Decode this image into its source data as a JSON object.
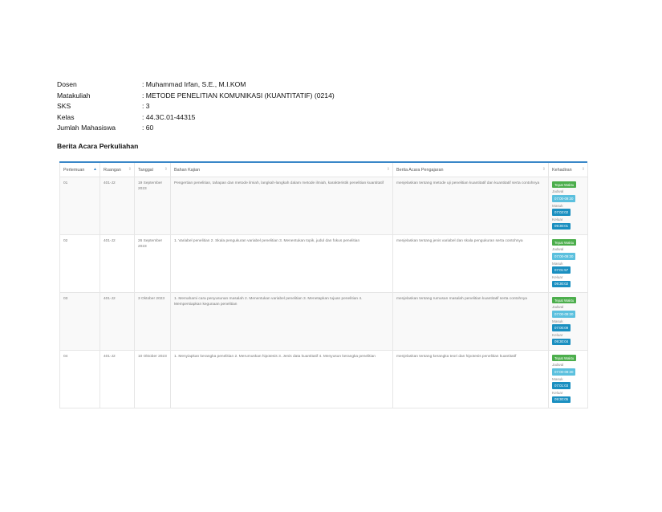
{
  "info": {
    "rows": [
      {
        "label": "Dosen",
        "value": ": Muhammad Irfan, S.E., M.I.KOM"
      },
      {
        "label": "Matakuliah",
        "value": ": METODE PENELITIAN KOMUNIKASI (KUANTITATIF) (0214)"
      },
      {
        "label": "SKS",
        "value": ": 3"
      },
      {
        "label": "Kelas",
        "value": ": 44.3C.01-44315"
      },
      {
        "label": "Jumlah Mahasiswa",
        "value": ": 60"
      }
    ]
  },
  "section_title": "Berita Acara Perkuliahan",
  "table": {
    "headers": {
      "pertemuan": "Pertemuan",
      "ruangan": "Ruangan",
      "tanggal": "Tanggal",
      "bahan": "Bahan Kajian",
      "berita": "Berita Acara Pengajaran",
      "kehadiran": "Kehadiran"
    },
    "rows": [
      {
        "pertemuan": "01",
        "ruangan": "401-J2",
        "tanggal": "19 September 2023",
        "bahan": "Pengertian penelitian, tahapan dan metode ilmiah, langkah-langkah dalam metode ilmiah, karakteristik penelitian kuantitatif",
        "berita": "menjelaskan tentang metode uji penelitian kuantitatif dan kuantitatif serta contohnya",
        "status": "Tepat Waktu",
        "jadwal_label": "Jadwal",
        "jadwal": "07:00-09:30",
        "masuk_label": "Masuk",
        "masuk": "07:02:02",
        "keluar_label": "Keluar",
        "keluar": "09:30:01"
      },
      {
        "pertemuan": "02",
        "ruangan": "401-J2",
        "tanggal": "26 September 2023",
        "bahan": "1. Variabel penelitian 2. Skala pengukuran variabel penelitian 3. Menentukan topik, judul dan fokus penelitian",
        "berita": "menjelaskan tentang jenis variabel dan skala pengukuran serta contohnya",
        "status": "Tepat Waktu",
        "jadwal_label": "Jadwal",
        "jadwal": "07:00-09:30",
        "masuk_label": "Masuk",
        "masuk": "07:01:57",
        "keluar_label": "Keluar",
        "keluar": "09:30:02"
      },
      {
        "pertemuan": "03",
        "ruangan": "401-J2",
        "tanggal": "3 Oktober 2023",
        "bahan": "1. Memahami cara penyusunan masalah 2. Menentukan variabel penelitian 3. Menetapkan tujuan penelitian 4. Mempersiapkan kegunaan penelitian",
        "berita": "menjelaskan tentang rumusan masalah penelitian kuantitatif serta contohnya",
        "status": "Tepat Waktu",
        "jadwal_label": "Jadwal",
        "jadwal": "07:00-09:30",
        "masuk_label": "Masuk",
        "masuk": "07:00:09",
        "keluar_label": "Keluar",
        "keluar": "09:30:04"
      },
      {
        "pertemuan": "04",
        "ruangan": "401-J2",
        "tanggal": "10 Oktober 2023",
        "bahan": "1. Menyiapkan kerangka penelitian 2. Merumuskan hipotesis 3. Jenis data kuantitatif 4. Menyusun kerangka penelitian",
        "berita": "menjelaskan tentang kerangka teori dan hipotesis penelitian kuantitatif",
        "status": "Tepat Waktu",
        "jadwal_label": "Jadwal",
        "jadwal": "07:00-09:30",
        "masuk_label": "Masuk",
        "masuk": "07:01:03",
        "keluar_label": "Keluar",
        "keluar": "09:30:05"
      }
    ]
  }
}
